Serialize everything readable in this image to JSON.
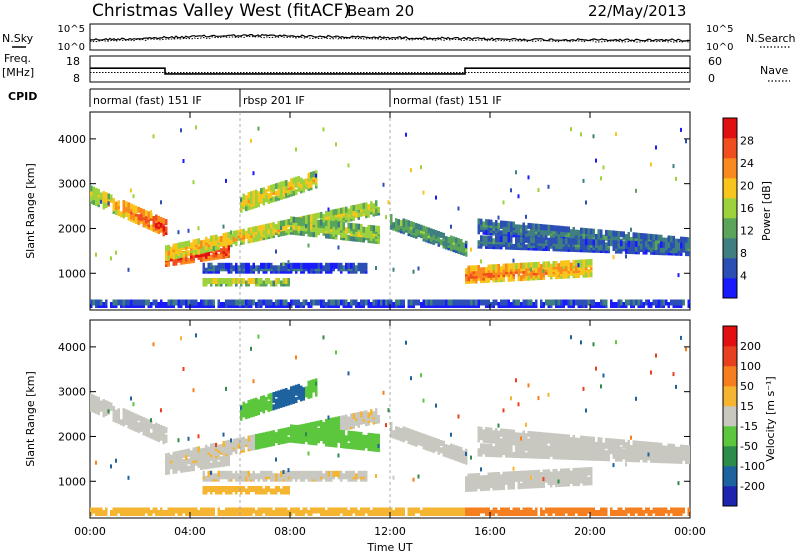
{
  "header": {
    "station": "Christmas Valley West (fitACF)",
    "beam": "Beam 20",
    "date": "22/May/2013"
  },
  "noise_panel": {
    "left_label": "N.Sky",
    "right_label": "N.Search",
    "tick_top": "10^5",
    "tick_bottom": "10^0"
  },
  "freq_panel": {
    "left_label_1": "Freq.",
    "left_label_2": "[MHz]",
    "right_label": "Nave",
    "tick_left_top": "18",
    "tick_left_bottom": "8",
    "tick_right_top": "60",
    "tick_right_bottom": "0"
  },
  "cpid": {
    "label": "CPID",
    "segments": [
      {
        "start_h": 0,
        "end_h": 6,
        "text": "normal (fast) 151 IF"
      },
      {
        "start_h": 6,
        "end_h": 12,
        "text": "rbsp 201 IF"
      },
      {
        "start_h": 12,
        "end_h": 24,
        "text": "normal (fast) 151 IF"
      }
    ]
  },
  "chart_data": {
    "type": "heatmap",
    "xlabel": "Time UT",
    "x_ticks": [
      "00:00",
      "04:00",
      "08:00",
      "12:00",
      "16:00",
      "20:00",
      "00:00"
    ],
    "x_range_hours": [
      0,
      24
    ],
    "panels": [
      {
        "name": "power",
        "ylabel": "Slant Range [km]",
        "y_ticks": [
          1000,
          2000,
          3000,
          4000
        ],
        "ylim": [
          180,
          4600
        ],
        "colorbar_label": "Power [dB]",
        "colorbar_ticks": [
          "4",
          "8",
          "12",
          "16",
          "20",
          "24",
          "28"
        ],
        "colorbar_range": [
          0,
          32
        ],
        "colors": [
          "#1a1aff",
          "#2c4fb6",
          "#3f7f7f",
          "#5aa55a",
          "#9ed23c",
          "#f7c51c",
          "#fb8a1e",
          "#f04e1e",
          "#e11010"
        ]
      },
      {
        "name": "velocity",
        "ylabel": "Slant Range [km]",
        "y_ticks": [
          1000,
          2000,
          3000,
          4000
        ],
        "ylim": [
          180,
          4600
        ],
        "colorbar_label": "Velocity [m s⁻¹]",
        "colorbar_ticks": [
          "200",
          "100",
          "50",
          "15",
          "-15",
          "-50",
          "-100",
          "-200"
        ],
        "colors": [
          "#1c24b0",
          "#1e62a0",
          "#2c8c4a",
          "#5cc63c",
          "#c8c8c0",
          "#f5b530",
          "#f57f1e",
          "#e8401e",
          "#e10f0f"
        ]
      }
    ]
  }
}
